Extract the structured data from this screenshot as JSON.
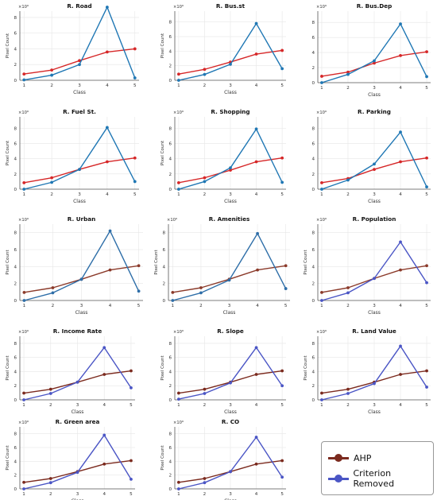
{
  "figure": {
    "legend": {
      "entries": [
        {
          "label": "AHP",
          "color": "#7b2a1e"
        },
        {
          "label": "Criterion Removed",
          "color": "#4a55c5"
        }
      ]
    }
  },
  "chart_data": [
    {
      "type": "line",
      "title": "R. Road",
      "xlabel": "Class",
      "ylabel": "Pixel Count",
      "multiplier": "×10⁶",
      "x": [
        1,
        2,
        3,
        4,
        5
      ],
      "ylim": [
        0,
        8.8
      ],
      "yticks": [
        0,
        2,
        4,
        6,
        8
      ],
      "series": [
        {
          "values": [
            0.8,
            1.3,
            2.5,
            3.6,
            4.0
          ],
          "color": "#d62728"
        },
        {
          "values": [
            0.05,
            0.65,
            2.0,
            9.3,
            0.3
          ],
          "color": "#1f77b4"
        }
      ]
    },
    {
      "type": "line",
      "title": "R. Bus.st",
      "xlabel": "Class",
      "ylabel": "Pixel Count",
      "multiplier": "×10⁶",
      "x": [
        1,
        2,
        3,
        4,
        5
      ],
      "ylim": [
        0,
        9.5
      ],
      "yticks": [
        0,
        2,
        4,
        6,
        8
      ],
      "series": [
        {
          "values": [
            0.85,
            1.5,
            2.5,
            3.6,
            4.1
          ],
          "color": "#d62728"
        },
        {
          "values": [
            0.0,
            0.8,
            2.2,
            7.8,
            1.6
          ],
          "color": "#1f77b4"
        }
      ]
    },
    {
      "type": "line",
      "title": "R. Bus.Dep",
      "xlabel": "Class",
      "ylabel": "",
      "multiplier": "×10⁶",
      "x": [
        1,
        2,
        3,
        4,
        5
      ],
      "ylim": [
        0,
        9.5
      ],
      "yticks": [
        0,
        2,
        4,
        6,
        8
      ],
      "series": [
        {
          "values": [
            0.85,
            1.4,
            2.6,
            3.6,
            4.1
          ],
          "color": "#d62728"
        },
        {
          "values": [
            0.0,
            1.1,
            2.9,
            7.8,
            0.8
          ],
          "color": "#1f77b4"
        }
      ]
    },
    {
      "type": "line",
      "title": "R. Fuel St.",
      "xlabel": "Class",
      "ylabel": "Pixel Count",
      "multiplier": "×10⁶",
      "x": [
        1,
        2,
        3,
        4,
        5
      ],
      "ylim": [
        0,
        9.5
      ],
      "yticks": [
        0,
        2,
        4,
        6,
        8
      ],
      "series": [
        {
          "values": [
            0.85,
            1.5,
            2.6,
            3.6,
            4.1
          ],
          "color": "#d62728"
        },
        {
          "values": [
            0.0,
            0.9,
            2.6,
            8.1,
            1.0
          ],
          "color": "#1f77b4"
        }
      ]
    },
    {
      "type": "line",
      "title": "R. Shopping",
      "xlabel": "Class",
      "ylabel": "Pixel Count",
      "multiplier": "×10⁶",
      "x": [
        1,
        2,
        3,
        4,
        5
      ],
      "ylim": [
        0,
        9.5
      ],
      "yticks": [
        0,
        2,
        4,
        6,
        8
      ],
      "series": [
        {
          "values": [
            0.85,
            1.5,
            2.5,
            3.6,
            4.1
          ],
          "color": "#d62728"
        },
        {
          "values": [
            0.0,
            1.0,
            2.8,
            7.9,
            0.9
          ],
          "color": "#1f77b4"
        }
      ]
    },
    {
      "type": "line",
      "title": "R. Parking",
      "xlabel": "Class",
      "ylabel": "",
      "multiplier": "×10⁶",
      "x": [
        1,
        2,
        3,
        4,
        5
      ],
      "ylim": [
        0,
        9.5
      ],
      "yticks": [
        0,
        2,
        4,
        6,
        8
      ],
      "series": [
        {
          "values": [
            0.85,
            1.4,
            2.6,
            3.6,
            4.1
          ],
          "color": "#d62728"
        },
        {
          "values": [
            0.0,
            1.2,
            3.3,
            7.5,
            0.3
          ],
          "color": "#1f77b4"
        }
      ]
    },
    {
      "type": "line",
      "title": "R. Urban",
      "xlabel": "Class",
      "ylabel": "Pixel Count",
      "multiplier": "×10⁶",
      "x": [
        1,
        2,
        3,
        4,
        5
      ],
      "ylim": [
        0,
        9.0
      ],
      "yticks": [
        0,
        2,
        4,
        6,
        8
      ],
      "series": [
        {
          "values": [
            0.95,
            1.5,
            2.5,
            3.6,
            4.1
          ],
          "color": "#8b3a2a"
        },
        {
          "values": [
            0.0,
            0.9,
            2.5,
            8.2,
            1.1
          ],
          "color": "#2e6ea8"
        }
      ]
    },
    {
      "type": "line",
      "title": "R. Amenities",
      "xlabel": "Class",
      "ylabel": "Pixel Count",
      "multiplier": "×10⁶",
      "x": [
        1,
        2,
        3,
        4,
        5
      ],
      "ylim": [
        0,
        9.0
      ],
      "yticks": [
        0,
        2,
        4,
        6,
        8
      ],
      "series": [
        {
          "values": [
            0.95,
            1.5,
            2.5,
            3.6,
            4.1
          ],
          "color": "#8b3a2a"
        },
        {
          "values": [
            0.0,
            0.9,
            2.4,
            7.9,
            1.4
          ],
          "color": "#2e6ea8"
        }
      ]
    },
    {
      "type": "line",
      "title": "R. Population",
      "xlabel": "Class",
      "ylabel": "Pixel Count",
      "multiplier": "×10⁶",
      "x": [
        1,
        2,
        3,
        4,
        5
      ],
      "ylim": [
        0,
        9.0
      ],
      "yticks": [
        0,
        2,
        4,
        6,
        8
      ],
      "series": [
        {
          "values": [
            0.95,
            1.5,
            2.6,
            3.6,
            4.1
          ],
          "color": "#8b3a2a"
        },
        {
          "values": [
            0.0,
            0.9,
            2.6,
            6.9,
            2.1
          ],
          "color": "#4a55c5"
        }
      ]
    },
    {
      "type": "line",
      "title": "R. Income Rate",
      "xlabel": "Class",
      "ylabel": "Pixel Count",
      "multiplier": "×10⁶",
      "x": [
        1,
        2,
        3,
        4,
        5
      ],
      "ylim": [
        0,
        9.0
      ],
      "yticks": [
        0,
        2,
        4,
        6,
        8
      ],
      "series": [
        {
          "values": [
            0.95,
            1.5,
            2.5,
            3.6,
            4.1
          ],
          "color": "#7b2a1e"
        },
        {
          "values": [
            0.0,
            0.9,
            2.5,
            7.4,
            1.7
          ],
          "color": "#4a55c5"
        }
      ]
    },
    {
      "type": "line",
      "title": "R. Slope",
      "xlabel": "Class",
      "ylabel": "Pixel Count",
      "multiplier": "×10⁶",
      "x": [
        1,
        2,
        3,
        4,
        5
      ],
      "ylim": [
        0,
        9.0
      ],
      "yticks": [
        0,
        2,
        4,
        6,
        8
      ],
      "series": [
        {
          "values": [
            0.95,
            1.5,
            2.5,
            3.6,
            4.1
          ],
          "color": "#7b2a1e"
        },
        {
          "values": [
            0.1,
            0.9,
            2.4,
            7.4,
            2.0
          ],
          "color": "#4a55c5"
        }
      ]
    },
    {
      "type": "line",
      "title": "R. Land Value",
      "xlabel": "Class",
      "ylabel": "Pixel Count",
      "multiplier": "×10⁶",
      "x": [
        1,
        2,
        3,
        4,
        5
      ],
      "ylim": [
        0,
        9.0
      ],
      "yticks": [
        0,
        2,
        4,
        6,
        8
      ],
      "series": [
        {
          "values": [
            0.95,
            1.5,
            2.5,
            3.6,
            4.1
          ],
          "color": "#7b2a1e"
        },
        {
          "values": [
            0.0,
            0.9,
            2.3,
            7.6,
            1.8
          ],
          "color": "#4a55c5"
        }
      ]
    },
    {
      "type": "line",
      "title": "R. Green area",
      "xlabel": "Class",
      "ylabel": "Pixel Count",
      "multiplier": "×10⁶",
      "x": [
        1,
        2,
        3,
        4,
        5
      ],
      "ylim": [
        0,
        9.0
      ],
      "yticks": [
        0,
        2,
        4,
        6,
        8
      ],
      "series": [
        {
          "values": [
            0.95,
            1.5,
            2.5,
            3.6,
            4.1
          ],
          "color": "#7b2a1e"
        },
        {
          "values": [
            0.0,
            0.9,
            2.4,
            7.8,
            1.4
          ],
          "color": "#4a55c5"
        }
      ]
    },
    {
      "type": "line",
      "title": "R. CO",
      "xlabel": "Class",
      "ylabel": "Pixel Count",
      "multiplier": "×10⁶",
      "x": [
        1,
        2,
        3,
        4,
        5
      ],
      "ylim": [
        0,
        9.0
      ],
      "yticks": [
        0,
        2,
        4,
        6,
        8
      ],
      "series": [
        {
          "values": [
            0.95,
            1.5,
            2.5,
            3.6,
            4.1
          ],
          "color": "#7b2a1e"
        },
        {
          "values": [
            0.0,
            0.9,
            2.5,
            7.5,
            1.7
          ],
          "color": "#4a55c5"
        }
      ]
    }
  ]
}
